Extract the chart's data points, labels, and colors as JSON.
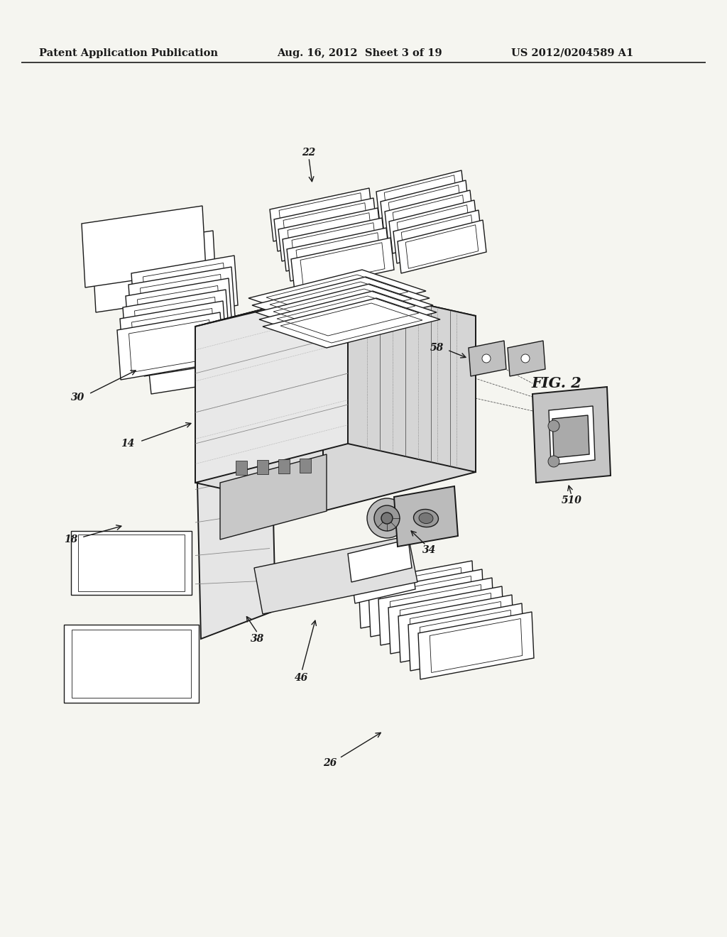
{
  "header_left": "Patent Application Publication",
  "header_middle": "Aug. 16, 2012  Sheet 3 of 19",
  "header_right": "US 2012/0204589 A1",
  "fig_label": "FIG. 2",
  "background_color": "#f5f5f0",
  "line_color": "#1a1a1a",
  "header_font_size": 10.5,
  "fig_label_font_size": 15,
  "annotation_font_size": 10
}
